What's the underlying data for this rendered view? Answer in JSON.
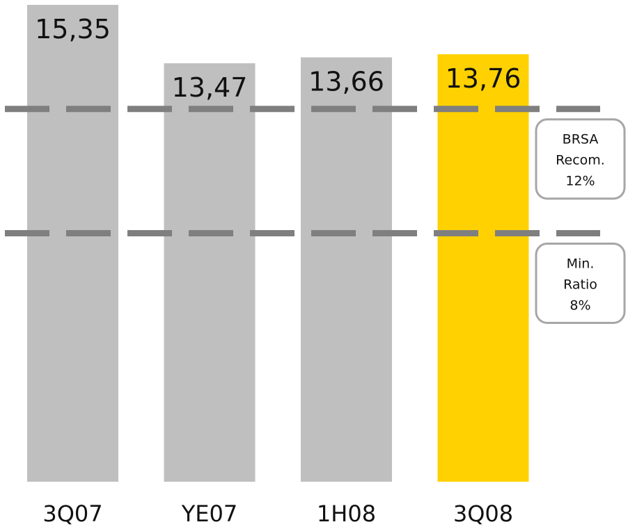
{
  "chart_data": {
    "type": "bar",
    "categories": [
      "3Q07",
      "YE07",
      "1H08",
      "3Q08"
    ],
    "values": [
      15.35,
      13.47,
      13.66,
      13.76
    ],
    "value_labels": [
      "15,35",
      "13,47",
      "13,66",
      "13,76"
    ],
    "highlight_index": 3,
    "ylim": [
      0,
      15.35
    ],
    "grid": false,
    "reference_lines": [
      {
        "value": 12,
        "label_lines": [
          "BRSA",
          "Recom.",
          "12%"
        ]
      },
      {
        "value": 8,
        "label_lines": [
          "Min.",
          "Ratio",
          "8%"
        ]
      }
    ]
  },
  "colors": {
    "bar": "#bfbfbf",
    "highlight_bar": "#ffd100",
    "reference_line": "#7f7f7f",
    "callout_border": "#a6a6a6"
  }
}
